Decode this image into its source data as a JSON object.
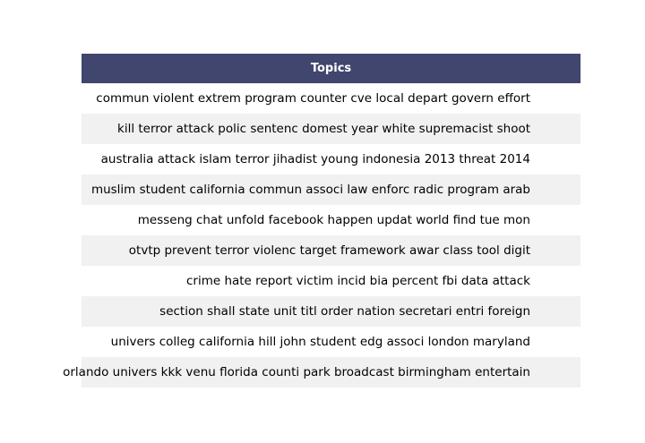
{
  "chart_data": {
    "type": "table",
    "columns": [
      "Topics"
    ],
    "rows": [
      "commun violent extrem program counter cve local depart govern effort",
      "kill terror attack polic sentenc domest year white supremacist shoot",
      "australia attack islam terror jihadist young indonesia 2013 threat 2014",
      "muslim student california commun associ law enforc radic program arab",
      "messeng chat unfold facebook happen updat world find tue mon",
      "otvtp prevent terror violenc target framework awar class tool digit",
      "crime hate report victim incid bia percent fbi data attack",
      "section shall state unit titl order nation secretari entri foreign",
      "univers colleg california hill john student edg associ london maryland",
      "orlando univers kkk venu florida counti park broadcast birmingham entertain"
    ]
  },
  "colors": {
    "header_background": "#40466e",
    "header_text": "#ffffff",
    "row_alt_background": "#f1f1f1",
    "row_background": "#ffffff"
  }
}
